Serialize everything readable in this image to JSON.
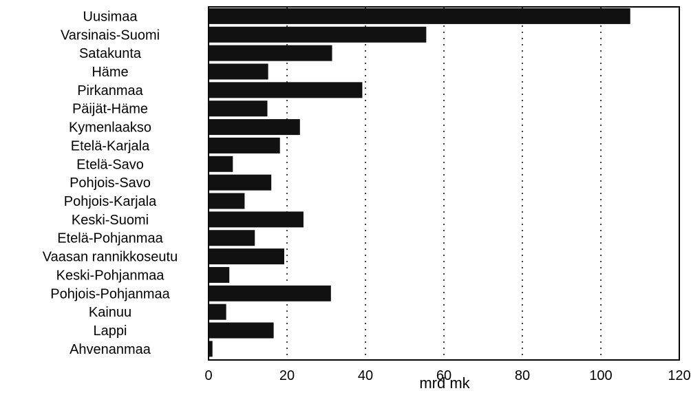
{
  "chart_data": {
    "type": "bar",
    "orientation": "horizontal",
    "categories": [
      "Uusimaa",
      "Varsinais-Suomi",
      "Satakunta",
      "Häme",
      "Pirkanmaa",
      "Päijät-Häme",
      "Kymenlaakso",
      "Etelä-Karjala",
      "Etelä-Savo",
      "Pohjois-Savo",
      "Pohjois-Karjala",
      "Keski-Suomi",
      "Etelä-Pohjanmaa",
      "Vaasan rannikkoseutu",
      "Keski-Pohjanmaa",
      "Pohjois-Pohjanmaa",
      "Kainuu",
      "Lappi",
      "Ahvenanmaa"
    ],
    "values": [
      107.5,
      55.5,
      31.5,
      15.2,
      39.2,
      15.0,
      23.3,
      18.2,
      6.2,
      16.0,
      9.2,
      24.2,
      11.8,
      19.3,
      5.3,
      31.2,
      4.5,
      16.6,
      1.0
    ],
    "xlabel": "mrd mk",
    "xlim": [
      0,
      120
    ],
    "xticks": [
      0,
      20,
      40,
      60,
      80,
      100,
      120
    ],
    "grid": "vertical dotted",
    "bar_color": "#111111"
  }
}
